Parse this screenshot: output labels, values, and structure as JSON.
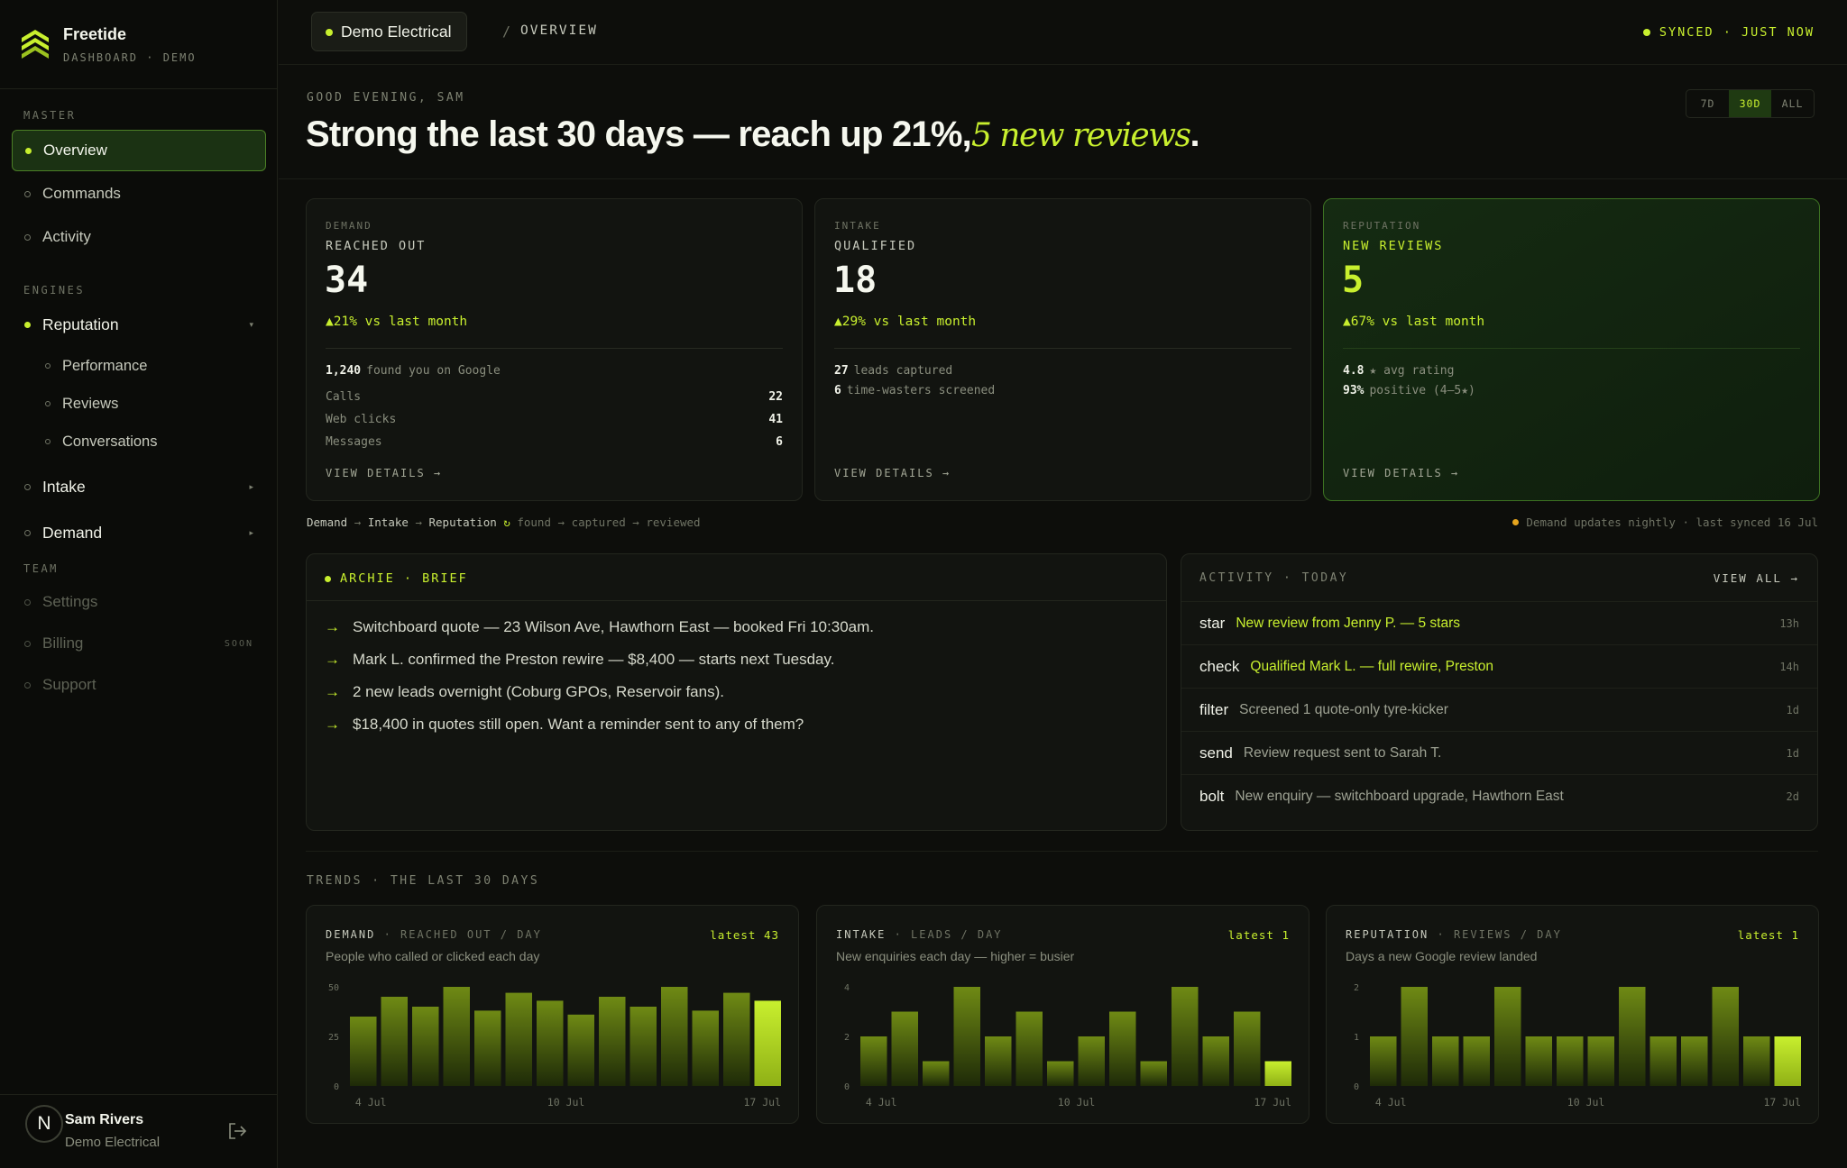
{
  "brand": {
    "name": "Freetide",
    "subtitle": "DASHBOARD · DEMO",
    "icon": "layered-chevron-logo"
  },
  "sidebar": {
    "sections": {
      "master": "MASTER",
      "engines": "ENGINES",
      "team": "TEAM"
    },
    "master_items": [
      {
        "label": "Overview",
        "active": true
      },
      {
        "label": "Commands"
      },
      {
        "label": "Activity"
      }
    ],
    "engines": [
      {
        "label": "Reputation",
        "expanded": true,
        "children": [
          "Performance",
          "Reviews",
          "Conversations"
        ]
      },
      {
        "label": "Intake"
      },
      {
        "label": "Demand"
      }
    ],
    "team_items": [
      {
        "label": "Settings"
      },
      {
        "label": "Billing",
        "badge": "SOON"
      },
      {
        "label": "Support"
      }
    ]
  },
  "user": {
    "initial": "N",
    "name": "Sam Rivers",
    "org": "Demo Electrical",
    "logout_icon": "logout-icon"
  },
  "topbar": {
    "workspace": "Demo Electrical",
    "separator": "/",
    "page": "OVERVIEW",
    "sync_status": "SYNCED · JUST NOW"
  },
  "hero": {
    "greeting": "GOOD EVENING, SAM",
    "headline_main": "Strong the last 30 days — reach up 21%,",
    "headline_em": "5 new reviews",
    "headline_end": ".",
    "ranges": [
      "7D",
      "30D",
      "ALL"
    ],
    "selected_range": "30D"
  },
  "kpis": {
    "demand": {
      "category": "DEMAND",
      "metric": "REACHED OUT",
      "value": "34",
      "delta": "▲21% vs last month",
      "stat_value": "1,240",
      "stat_label": "found you on Google",
      "rows": [
        {
          "label": "Calls",
          "value": "22"
        },
        {
          "label": "Web clicks",
          "value": "41"
        },
        {
          "label": "Messages",
          "value": "6"
        }
      ],
      "link": "VIEW DETAILS →"
    },
    "intake": {
      "category": "INTAKE",
      "metric": "QUALIFIED",
      "value": "18",
      "delta": "▲29% vs last month",
      "stats": [
        {
          "value": "27",
          "label": "leads captured"
        },
        {
          "value": "6",
          "label": "time-wasters screened"
        }
      ],
      "link": "VIEW DETAILS →"
    },
    "reputation": {
      "category": "REPUTATION",
      "metric": "NEW REVIEWS",
      "value": "5",
      "delta": "▲67% vs last month",
      "stats": [
        {
          "value": "4.8",
          "label": "★ avg rating"
        },
        {
          "value": "93%",
          "label": "positive (4–5★)"
        }
      ],
      "link": "VIEW DETAILS →"
    }
  },
  "flow": {
    "steps": [
      "Demand",
      "Intake",
      "Reputation"
    ],
    "arrow": "→",
    "cycle": "↻",
    "detail": "found → captured → reviewed",
    "note": "Demand updates nightly · last synced 16 Jul"
  },
  "brief": {
    "title": "ARCHIE · BRIEF",
    "items": [
      "Switchboard quote — 23 Wilson Ave, Hawthorn East — booked Fri 10:30am.",
      "Mark L. confirmed the Preston rewire — $8,400 — starts next Tuesday.",
      "2 new leads overnight (Coburg GPOs, Reservoir fans).",
      "$18,400 in quotes still open. Want a reminder sent to any of them?"
    ]
  },
  "activity": {
    "title": "ACTIVITY · TODAY",
    "view_all": "VIEW ALL →",
    "items": [
      {
        "icon": "star",
        "text": "New review from Jenny P. — 5 stars",
        "ago": "13h",
        "highlight": true
      },
      {
        "icon": "check",
        "text": "Qualified Mark L. — full rewire, Preston",
        "ago": "14h",
        "highlight": true
      },
      {
        "icon": "filter",
        "text": "Screened 1 quote-only tyre-kicker",
        "ago": "1d",
        "highlight": false
      },
      {
        "icon": "send",
        "text": "Review request sent to Sarah T.",
        "ago": "1d",
        "highlight": false
      },
      {
        "icon": "bolt",
        "text": "New enquiry — switchboard upgrade, Hawthorn East",
        "ago": "2d",
        "highlight": false
      }
    ]
  },
  "trends": {
    "title": "TRENDS · THE LAST 30 DAYS"
  },
  "charts_meta": [
    {
      "name": "DEMAND",
      "unit": "REACHED OUT / DAY",
      "latest": "latest 43",
      "desc": "People who called or clicked each day"
    },
    {
      "name": "INTAKE",
      "unit": "LEADS / DAY",
      "latest": "latest 1",
      "desc": "New enquiries each day — higher = busier"
    },
    {
      "name": "REPUTATION",
      "unit": "REVIEWS / DAY",
      "latest": "latest 1",
      "desc": "Days a new Google review landed"
    }
  ],
  "chart_data": [
    {
      "type": "bar",
      "title": "DEMAND · REACHED OUT / DAY",
      "ylim": [
        0,
        50
      ],
      "yticks": [
        0,
        25,
        50
      ],
      "xticks": [
        "4 Jul",
        "10 Jul",
        "17 Jul"
      ],
      "values": [
        35,
        45,
        40,
        50,
        38,
        47,
        43,
        36,
        45,
        40,
        50,
        38,
        47,
        43
      ],
      "highlight_last": true
    },
    {
      "type": "bar",
      "title": "INTAKE · LEADS / DAY",
      "ylim": [
        0,
        4
      ],
      "yticks": [
        0,
        2,
        4
      ],
      "xticks": [
        "4 Jul",
        "10 Jul",
        "17 Jul"
      ],
      "values": [
        2,
        3,
        1,
        4,
        2,
        3,
        1,
        2,
        3,
        1,
        4,
        2,
        3,
        1
      ],
      "highlight_last": true
    },
    {
      "type": "bar",
      "title": "REPUTATION · REVIEWS / DAY",
      "ylim": [
        0,
        2
      ],
      "yticks": [
        0,
        1,
        2
      ],
      "xticks": [
        "4 Jul",
        "10 Jul",
        "17 Jul"
      ],
      "values": [
        1,
        2,
        1,
        1,
        2,
        1,
        1,
        1,
        2,
        1,
        1,
        2,
        1,
        1
      ],
      "highlight_last": true
    }
  ],
  "colors": {
    "accent": "#c8ef2e",
    "bar_top": "#6f8a14",
    "bar_bottom": "#1e2a08",
    "warn_dot": "#e6a51e"
  }
}
